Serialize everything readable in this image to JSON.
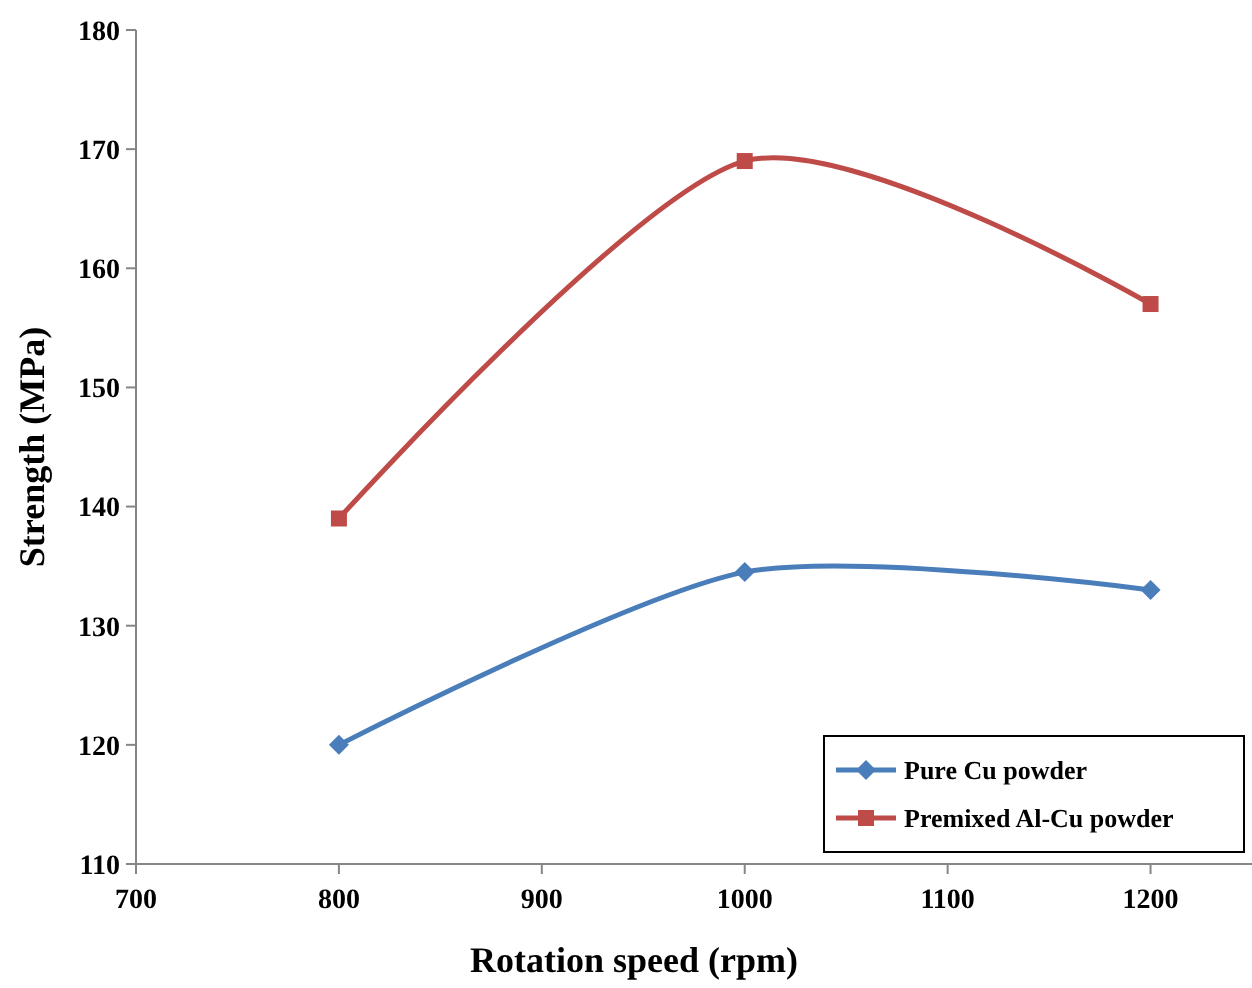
{
  "chart_data": {
    "type": "line",
    "xlabel": "Rotation speed (rpm)",
    "ylabel": "Strength (MPa)",
    "x": [
      800,
      1000,
      1200
    ],
    "series": [
      {
        "name": "Pure Cu powder",
        "color": "#4a7ebb",
        "marker": "diamond",
        "values": [
          120,
          134.5,
          133
        ]
      },
      {
        "name": "Premixed Al-Cu powder",
        "color": "#be4b48",
        "marker": "square",
        "values": [
          139,
          169,
          157
        ]
      }
    ],
    "xlim": [
      700,
      1250
    ],
    "xticks": [
      700,
      800,
      900,
      1000,
      1100,
      1200
    ],
    "ylim": [
      110,
      180
    ],
    "yticks": [
      110,
      120,
      130,
      140,
      150,
      160,
      170,
      180
    ],
    "grid": false,
    "legend": "bottom right",
    "line_style": "solid"
  }
}
